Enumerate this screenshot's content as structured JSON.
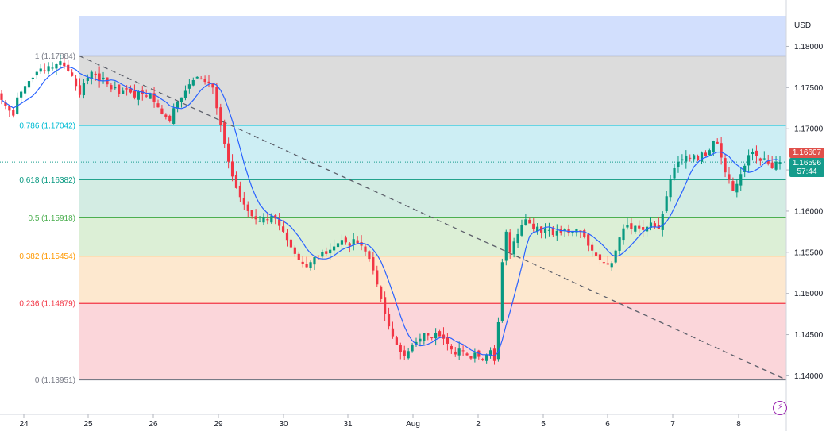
{
  "currency": "USD",
  "last_price_label": "1.16607",
  "live_price_label": "1.16596",
  "countdown": "57:44",
  "bolt_icon": "lightning-icon",
  "chart_data": {
    "type": "candlestick",
    "title": "",
    "ylim": [
      1.1375,
      1.1825
    ],
    "y_ticks": [
      {
        "value": 1.18,
        "label": "1.18000"
      },
      {
        "value": 1.175,
        "label": "1.17500"
      },
      {
        "value": 1.17,
        "label": "1.17000"
      },
      {
        "value": 1.165,
        "label": "1.16500"
      },
      {
        "value": 1.16,
        "label": "1.16000"
      },
      {
        "value": 1.155,
        "label": "1.15500"
      },
      {
        "value": 1.15,
        "label": "1.15000"
      },
      {
        "value": 1.145,
        "label": "1.14500"
      },
      {
        "value": 1.14,
        "label": "1.14000"
      }
    ],
    "x_ticks": [
      "24",
      "25",
      "26",
      "29",
      "30",
      "31",
      "Aug",
      "2",
      "5",
      "6",
      "7",
      "8"
    ],
    "fib_levels": [
      {
        "ratio": 1,
        "price": 1.17884,
        "label": "1 (1.17884)",
        "color": "#787b86",
        "zone": "#e0e0e0"
      },
      {
        "ratio": 0.786,
        "price": 1.17042,
        "label": "0.786 (1.17042)",
        "color": "#00bcd4",
        "zone": "#dadada"
      },
      {
        "ratio": 0.618,
        "price": 1.16382,
        "label": "0.618 (1.16382)",
        "color": "#089981",
        "zone": "#cbeef3"
      },
      {
        "ratio": 0.5,
        "price": 1.15918,
        "label": "0.5 (1.15918)",
        "color": "#4caf50",
        "zone": "#d5ede4"
      },
      {
        "ratio": 0.382,
        "price": 1.15454,
        "label": "0.382 (1.15454)",
        "color": "#ff9800",
        "zone": "#dcefdc"
      },
      {
        "ratio": 0.236,
        "price": 1.14879,
        "label": "0.236 (1.14879)",
        "color": "#f23645",
        "zone": "#fde9cf"
      },
      {
        "ratio": 0,
        "price": 1.13951,
        "label": "0 (1.13951)",
        "color": "#787b86",
        "zone": "#fbd9dd"
      }
    ],
    "upper_zone_color": "#d2dffd",
    "trendline": {
      "from_price": 1.17884,
      "to_price": 1.13951,
      "color": "#5d606b",
      "style": "dashed"
    },
    "current_price": 1.16596,
    "colors": {
      "up": "#089981",
      "down": "#f23645",
      "ma": "#2962ff"
    },
    "series_close": [
      1.1735,
      1.1728,
      1.1722,
      1.1716,
      1.1738,
      1.1745,
      1.1752,
      1.1758,
      1.1762,
      1.1769,
      1.1773,
      1.1771,
      1.1776,
      1.1774,
      1.1779,
      1.1782,
      1.1776,
      1.177,
      1.1764,
      1.1752,
      1.1741,
      1.1756,
      1.1762,
      1.1769,
      1.1765,
      1.1758,
      1.1762,
      1.1754,
      1.1748,
      1.1751,
      1.1742,
      1.1746,
      1.1748,
      1.1744,
      1.1738,
      1.1745,
      1.1742,
      1.1739,
      1.1743,
      1.1733,
      1.1726,
      1.1718,
      1.1714,
      1.1709,
      1.1725,
      1.1733,
      1.1738,
      1.1746,
      1.1754,
      1.1759,
      1.1763,
      1.176,
      1.1757,
      1.1755,
      1.175,
      1.1725,
      1.1705,
      1.1681,
      1.166,
      1.1642,
      1.1628,
      1.1617,
      1.1608,
      1.16,
      1.1594,
      1.159,
      1.1588,
      1.1593,
      1.1589,
      1.1594,
      1.1591,
      1.1582,
      1.1575,
      1.1565,
      1.1556,
      1.1548,
      1.1541,
      1.1536,
      1.1532,
      1.1538,
      1.1544,
      1.1546,
      1.155,
      1.1548,
      1.1553,
      1.1557,
      1.1561,
      1.1565,
      1.1562,
      1.1558,
      1.1566,
      1.1561,
      1.1558,
      1.1551,
      1.1542,
      1.1528,
      1.1511,
      1.1493,
      1.1475,
      1.146,
      1.1448,
      1.1438,
      1.1429,
      1.1424,
      1.143,
      1.1437,
      1.1441,
      1.1445,
      1.1452,
      1.1449,
      1.1446,
      1.1452,
      1.1448,
      1.1445,
      1.1439,
      1.1432,
      1.1426,
      1.1433,
      1.143,
      1.1425,
      1.1421,
      1.1428,
      1.1423,
      1.1419,
      1.1426,
      1.1431,
      1.1418,
      1.1465,
      1.1538,
      1.1575,
      1.155,
      1.1563,
      1.1572,
      1.1583,
      1.159,
      1.1585,
      1.1578,
      1.1581,
      1.1574,
      1.1579,
      1.1577,
      1.1571,
      1.1576,
      1.1574,
      1.1578,
      1.1573,
      1.1575,
      1.1578,
      1.1576,
      1.1569,
      1.1558,
      1.1552,
      1.1546,
      1.1541,
      1.1538,
      1.1535,
      1.1537,
      1.1552,
      1.1568,
      1.1579,
      1.1583,
      1.1578,
      1.1582,
      1.1579,
      1.1577,
      1.1581,
      1.1586,
      1.1581,
      1.1578,
      1.1597,
      1.1618,
      1.1638,
      1.1652,
      1.166,
      1.1663,
      1.1667,
      1.1664,
      1.1668,
      1.1662,
      1.1671,
      1.1667,
      1.1674,
      1.1685,
      1.1682,
      1.1665,
      1.1647,
      1.1638,
      1.1625,
      1.1633,
      1.1645,
      1.1655,
      1.1668,
      1.1672,
      1.1667,
      1.1661,
      1.1664,
      1.1658,
      1.1652,
      1.166,
      1.16596
    ]
  }
}
